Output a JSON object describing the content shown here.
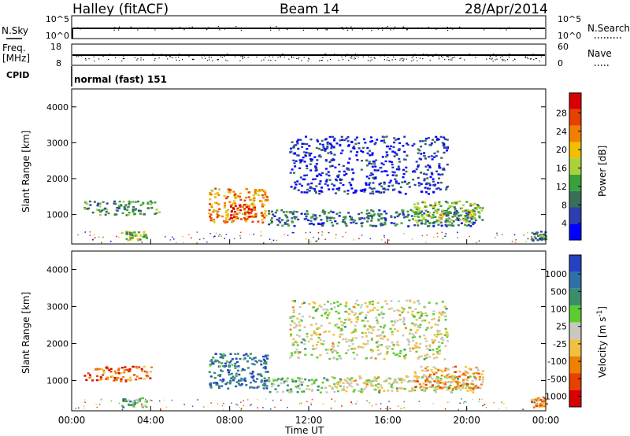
{
  "header": {
    "station": "Halley (fitACF)",
    "beam": "Beam 14",
    "date": "28/Apr/2014"
  },
  "nsky_panel": {
    "label": "N.Sky",
    "ticks_left": [
      "10^5",
      "10^0"
    ],
    "ticks_right": [
      "10^5",
      "10^0"
    ],
    "right_label": "N.Search"
  },
  "freq_panel": {
    "label_line1": "Freq.",
    "label_line2": "[MHz]",
    "ticks_left": [
      "18",
      "8"
    ],
    "ticks_right": [
      "60",
      "0"
    ],
    "right_label": "Nave"
  },
  "cpid": {
    "label": "CPID",
    "mode": "normal (fast) 151"
  },
  "colors": {
    "power_scale": [
      "#0000ff",
      "#2b3fae",
      "#3a6e57",
      "#3aa13a",
      "#a8d23a",
      "#f0c000",
      "#f08000",
      "#e84000",
      "#d80000"
    ],
    "velocity_scale": [
      "#2540c0",
      "#2f6faa",
      "#3a8f6a",
      "#5ecc30",
      "#c8c8c0",
      "#f0c040",
      "#f08000",
      "#e84000",
      "#d80000"
    ]
  },
  "chart_data": [
    {
      "type": "heatmap",
      "name": "power",
      "ylabel": "Slant Range [km]",
      "yticks": [
        "4000",
        "3000",
        "2000",
        "1000"
      ],
      "ylim": [
        180,
        4500
      ],
      "xlim_hours": [
        0,
        24
      ],
      "colorbar_label": "Power [dB]",
      "colorbar_ticks": [
        "28",
        "24",
        "20",
        "16",
        "12",
        "8",
        "4"
      ],
      "colorbar_range": [
        0,
        30
      ],
      "regions": [
        {
          "t0": 0.6,
          "t1": 4.4,
          "r0": 1000,
          "r1": 1400,
          "level": 0.35
        },
        {
          "t0": 2.4,
          "t1": 3.8,
          "r0": 300,
          "r1": 550,
          "level": 0.45
        },
        {
          "t0": 6.9,
          "t1": 9.9,
          "r0": 800,
          "r1": 1750,
          "level": 0.7
        },
        {
          "t0": 8.0,
          "t1": 9.3,
          "r0": 900,
          "r1": 1300,
          "level": 0.92
        },
        {
          "t0": 9.9,
          "t1": 20.5,
          "r0": 700,
          "r1": 1150,
          "level": 0.25
        },
        {
          "t0": 11.0,
          "t1": 19.0,
          "r0": 1600,
          "r1": 3200,
          "level": 0.12
        },
        {
          "t0": 17.2,
          "t1": 20.8,
          "r0": 800,
          "r1": 1400,
          "level": 0.45
        },
        {
          "t0": 23.2,
          "t1": 24.0,
          "r0": 300,
          "r1": 550,
          "level": 0.3
        }
      ]
    },
    {
      "type": "heatmap",
      "name": "velocity",
      "ylabel": "Slant Range [km]",
      "yticks": [
        "4000",
        "3000",
        "2000",
        "1000"
      ],
      "ylim": [
        180,
        4500
      ],
      "xlabel": "Time UT",
      "xticks": [
        "00:00",
        "04:00",
        "08:00",
        "12:00",
        "16:00",
        "20:00",
        "00:00"
      ],
      "xlim_hours": [
        0,
        24
      ],
      "colorbar_label": "Velocity [m s^-1]",
      "colorbar_ticks": [
        "1000",
        "500",
        "100",
        "25",
        "-25",
        "-100",
        "-500",
        "-1000"
      ],
      "colorbar_range": [
        -1200,
        1200
      ],
      "regions": [
        {
          "t0": 0.6,
          "t1": 4.0,
          "r0": 1000,
          "r1": 1400,
          "level": 0.2
        },
        {
          "t0": 2.5,
          "t1": 3.8,
          "r0": 300,
          "r1": 550,
          "level": 0.65
        },
        {
          "t0": 6.9,
          "t1": 9.9,
          "r0": 800,
          "r1": 1750,
          "level": 0.82
        },
        {
          "t0": 9.9,
          "t1": 13.0,
          "r0": 700,
          "r1": 1100,
          "level": 0.6
        },
        {
          "t0": 13.0,
          "t1": 20.5,
          "r0": 700,
          "r1": 1150,
          "level": 0.5
        },
        {
          "t0": 11.0,
          "t1": 19.0,
          "r0": 1600,
          "r1": 3200,
          "level": 0.5
        },
        {
          "t0": 17.2,
          "t1": 20.8,
          "r0": 800,
          "r1": 1400,
          "level": 0.35
        },
        {
          "t0": 23.2,
          "t1": 24.0,
          "r0": 300,
          "r1": 550,
          "level": 0.3
        }
      ]
    }
  ]
}
